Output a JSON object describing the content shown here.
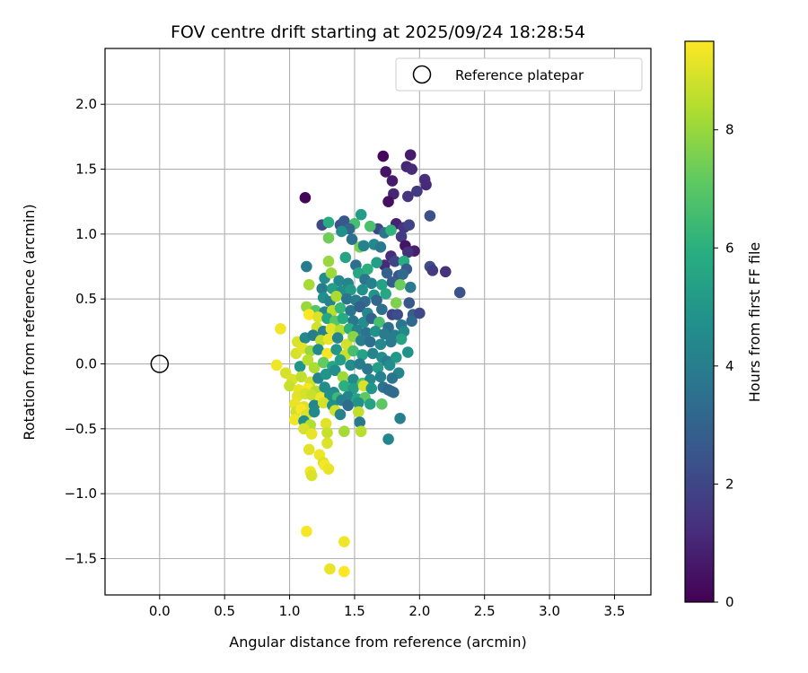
{
  "chart_data": {
    "type": "scatter",
    "title": "FOV centre drift starting at 2025/09/24 18:28:54",
    "xlabel": "Angular distance from reference (arcmin)",
    "ylabel": "Rotation from reference (arcmin)",
    "xlim": [
      -0.42,
      3.78
    ],
    "ylim": [
      -1.78,
      2.43
    ],
    "xticks": [
      0.0,
      0.5,
      1.0,
      1.5,
      2.0,
      2.5,
      3.0,
      3.5
    ],
    "xtick_labels": [
      "0.0",
      "0.5",
      "1.0",
      "1.5",
      "2.0",
      "2.5",
      "3.0",
      "3.5"
    ],
    "yticks": [
      -1.5,
      -1.0,
      -0.5,
      0.0,
      0.5,
      1.0,
      1.5,
      2.0
    ],
    "ytick_labels": [
      "−1.5",
      "−1.0",
      "−0.5",
      "0.0",
      "0.5",
      "1.0",
      "1.5",
      "2.0"
    ],
    "grid": true,
    "legend": {
      "position": "top-right",
      "label": "Reference platepar"
    },
    "reference_point": {
      "x": 0.0,
      "y": 0.0
    },
    "colorbar": {
      "label": "Hours from first FF file",
      "colormap": "viridis",
      "range": [
        0,
        9.5
      ],
      "ticks": [
        0,
        2,
        4,
        6,
        8
      ],
      "tick_labels": [
        "0",
        "2",
        "4",
        "6",
        "8"
      ]
    },
    "points": [
      {
        "x": 1.12,
        "y": 1.28,
        "h": 0.1
      },
      {
        "x": 1.72,
        "y": 1.6,
        "h": 0.2
      },
      {
        "x": 1.93,
        "y": 1.61,
        "h": 0.7
      },
      {
        "x": 1.9,
        "y": 1.52,
        "h": 1.0
      },
      {
        "x": 1.94,
        "y": 1.5,
        "h": 1.1
      },
      {
        "x": 1.74,
        "y": 1.48,
        "h": 0.5
      },
      {
        "x": 2.04,
        "y": 1.42,
        "h": 1.3
      },
      {
        "x": 1.79,
        "y": 1.41,
        "h": 0.7
      },
      {
        "x": 2.05,
        "y": 1.38,
        "h": 1.1
      },
      {
        "x": 1.98,
        "y": 1.33,
        "h": 1.6
      },
      {
        "x": 1.8,
        "y": 1.31,
        "h": 1.0
      },
      {
        "x": 1.91,
        "y": 1.29,
        "h": 1.4
      },
      {
        "x": 1.76,
        "y": 1.25,
        "h": 0.4
      },
      {
        "x": 2.08,
        "y": 1.14,
        "h": 2.3
      },
      {
        "x": 1.25,
        "y": 1.07,
        "h": 2.1
      },
      {
        "x": 1.39,
        "y": 1.07,
        "h": 2.3
      },
      {
        "x": 1.42,
        "y": 1.1,
        "h": 2.6
      },
      {
        "x": 1.82,
        "y": 1.08,
        "h": 0.9
      },
      {
        "x": 1.88,
        "y": 1.05,
        "h": 1.5
      },
      {
        "x": 1.92,
        "y": 1.07,
        "h": 1.9
      },
      {
        "x": 1.68,
        "y": 1.04,
        "h": 2.0
      },
      {
        "x": 1.62,
        "y": 1.06,
        "h": 6.7
      },
      {
        "x": 1.55,
        "y": 1.15,
        "h": 5.2
      },
      {
        "x": 1.5,
        "y": 1.08,
        "h": 6.6
      },
      {
        "x": 1.3,
        "y": 1.09,
        "h": 5.8
      },
      {
        "x": 1.46,
        "y": 1.04,
        "h": 3.1
      },
      {
        "x": 1.73,
        "y": 1.01,
        "h": 3.6
      },
      {
        "x": 1.78,
        "y": 1.03,
        "h": 6.1
      },
      {
        "x": 1.86,
        "y": 0.98,
        "h": 1.6
      },
      {
        "x": 1.89,
        "y": 0.91,
        "h": 0.5
      },
      {
        "x": 1.96,
        "y": 0.87,
        "h": 0.8
      },
      {
        "x": 1.91,
        "y": 0.86,
        "h": 1.3
      },
      {
        "x": 1.54,
        "y": 0.9,
        "h": 7.5
      },
      {
        "x": 1.57,
        "y": 0.91,
        "h": 4.2
      },
      {
        "x": 1.65,
        "y": 0.92,
        "h": 4.5
      },
      {
        "x": 1.7,
        "y": 0.9,
        "h": 3.8
      },
      {
        "x": 1.3,
        "y": 0.97,
        "h": 7.4
      },
      {
        "x": 1.4,
        "y": 1.02,
        "h": 4.7
      },
      {
        "x": 1.48,
        "y": 0.96,
        "h": 3.5
      },
      {
        "x": 1.78,
        "y": 0.83,
        "h": 1.2
      },
      {
        "x": 1.81,
        "y": 0.79,
        "h": 2.0
      },
      {
        "x": 1.73,
        "y": 0.76,
        "h": 1.1
      },
      {
        "x": 1.88,
        "y": 0.79,
        "h": 5.9
      },
      {
        "x": 1.9,
        "y": 0.73,
        "h": 2.7
      },
      {
        "x": 2.08,
        "y": 0.75,
        "h": 2.2
      },
      {
        "x": 2.1,
        "y": 0.72,
        "h": 1.6
      },
      {
        "x": 2.2,
        "y": 0.71,
        "h": 1.3
      },
      {
        "x": 2.31,
        "y": 0.55,
        "h": 2.4
      },
      {
        "x": 1.13,
        "y": 0.75,
        "h": 4.0
      },
      {
        "x": 1.3,
        "y": 0.79,
        "h": 8.0
      },
      {
        "x": 1.43,
        "y": 0.82,
        "h": 5.5
      },
      {
        "x": 1.51,
        "y": 0.76,
        "h": 3.4
      },
      {
        "x": 1.6,
        "y": 0.73,
        "h": 6.0
      },
      {
        "x": 1.67,
        "y": 0.78,
        "h": 5.3
      },
      {
        "x": 1.75,
        "y": 0.7,
        "h": 3.0
      },
      {
        "x": 1.84,
        "y": 0.68,
        "h": 2.5
      },
      {
        "x": 1.87,
        "y": 0.69,
        "h": 3.2
      },
      {
        "x": 1.93,
        "y": 0.59,
        "h": 3.9
      },
      {
        "x": 1.27,
        "y": 0.66,
        "h": 4.6
      },
      {
        "x": 1.32,
        "y": 0.7,
        "h": 8.1
      },
      {
        "x": 1.38,
        "y": 0.64,
        "h": 4.4
      },
      {
        "x": 1.45,
        "y": 0.62,
        "h": 4.3
      },
      {
        "x": 1.53,
        "y": 0.7,
        "h": 5.6
      },
      {
        "x": 1.58,
        "y": 0.65,
        "h": 3.7
      },
      {
        "x": 1.63,
        "y": 0.62,
        "h": 4.1
      },
      {
        "x": 1.71,
        "y": 0.61,
        "h": 5.4
      },
      {
        "x": 1.79,
        "y": 0.63,
        "h": 2.8
      },
      {
        "x": 1.85,
        "y": 0.61,
        "h": 7.3
      },
      {
        "x": 1.15,
        "y": 0.61,
        "h": 8.2
      },
      {
        "x": 1.25,
        "y": 0.58,
        "h": 4.0
      },
      {
        "x": 1.33,
        "y": 0.58,
        "h": 5.3
      },
      {
        "x": 1.4,
        "y": 0.56,
        "h": 4.6
      },
      {
        "x": 1.47,
        "y": 0.57,
        "h": 5.1
      },
      {
        "x": 1.56,
        "y": 0.57,
        "h": 4.8
      },
      {
        "x": 1.65,
        "y": 0.53,
        "h": 4.9
      },
      {
        "x": 1.74,
        "y": 0.54,
        "h": 5.6
      },
      {
        "x": 1.26,
        "y": 0.51,
        "h": 4.7
      },
      {
        "x": 1.31,
        "y": 0.48,
        "h": 4.2
      },
      {
        "x": 1.36,
        "y": 0.52,
        "h": 8.3
      },
      {
        "x": 1.44,
        "y": 0.5,
        "h": 3.6
      },
      {
        "x": 1.51,
        "y": 0.49,
        "h": 4.0
      },
      {
        "x": 1.58,
        "y": 0.48,
        "h": 3.3
      },
      {
        "x": 1.67,
        "y": 0.49,
        "h": 3.1
      },
      {
        "x": 1.82,
        "y": 0.47,
        "h": 7.6
      },
      {
        "x": 1.92,
        "y": 0.47,
        "h": 2.6
      },
      {
        "x": 1.13,
        "y": 0.44,
        "h": 8.0
      },
      {
        "x": 1.2,
        "y": 0.41,
        "h": 6.9
      },
      {
        "x": 1.27,
        "y": 0.4,
        "h": 4.3
      },
      {
        "x": 1.33,
        "y": 0.41,
        "h": 8.5
      },
      {
        "x": 1.39,
        "y": 0.43,
        "h": 6.3
      },
      {
        "x": 1.47,
        "y": 0.41,
        "h": 3.7
      },
      {
        "x": 1.54,
        "y": 0.44,
        "h": 2.9
      },
      {
        "x": 1.6,
        "y": 0.39,
        "h": 4.4
      },
      {
        "x": 1.71,
        "y": 0.42,
        "h": 3.5
      },
      {
        "x": 1.79,
        "y": 0.38,
        "h": 1.9
      },
      {
        "x": 1.83,
        "y": 0.38,
        "h": 2.2
      },
      {
        "x": 1.95,
        "y": 0.38,
        "h": 2.8
      },
      {
        "x": 2.0,
        "y": 0.39,
        "h": 2.1
      },
      {
        "x": 1.94,
        "y": 0.33,
        "h": 3.2
      },
      {
        "x": 1.15,
        "y": 0.38,
        "h": 9.5
      },
      {
        "x": 1.22,
        "y": 0.36,
        "h": 9.0
      },
      {
        "x": 1.29,
        "y": 0.35,
        "h": 5.6
      },
      {
        "x": 1.35,
        "y": 0.33,
        "h": 7.0
      },
      {
        "x": 1.41,
        "y": 0.35,
        "h": 5.8
      },
      {
        "x": 1.49,
        "y": 0.33,
        "h": 3.8
      },
      {
        "x": 1.57,
        "y": 0.32,
        "h": 4.6
      },
      {
        "x": 1.63,
        "y": 0.35,
        "h": 3.0
      },
      {
        "x": 1.69,
        "y": 0.32,
        "h": 6.6
      },
      {
        "x": 1.76,
        "y": 0.28,
        "h": 3.4
      },
      {
        "x": 1.86,
        "y": 0.3,
        "h": 3.7
      },
      {
        "x": 1.88,
        "y": 0.25,
        "h": 4.5
      },
      {
        "x": 0.93,
        "y": 0.27,
        "h": 9.3
      },
      {
        "x": 1.21,
        "y": 0.28,
        "h": 8.8
      },
      {
        "x": 1.26,
        "y": 0.25,
        "h": 4.1
      },
      {
        "x": 1.32,
        "y": 0.27,
        "h": 9.1
      },
      {
        "x": 1.39,
        "y": 0.26,
        "h": 8.4
      },
      {
        "x": 1.46,
        "y": 0.27,
        "h": 6.0
      },
      {
        "x": 1.52,
        "y": 0.26,
        "h": 4.2
      },
      {
        "x": 1.59,
        "y": 0.24,
        "h": 3.6
      },
      {
        "x": 1.66,
        "y": 0.25,
        "h": 4.8
      },
      {
        "x": 1.73,
        "y": 0.23,
        "h": 3.9
      },
      {
        "x": 1.81,
        "y": 0.22,
        "h": 4.0
      },
      {
        "x": 1.86,
        "y": 0.19,
        "h": 5.5
      },
      {
        "x": 1.06,
        "y": 0.17,
        "h": 9.0
      },
      {
        "x": 1.12,
        "y": 0.2,
        "h": 4.4
      },
      {
        "x": 1.18,
        "y": 0.22,
        "h": 4.0
      },
      {
        "x": 1.24,
        "y": 0.18,
        "h": 8.6
      },
      {
        "x": 1.3,
        "y": 0.19,
        "h": 9.2
      },
      {
        "x": 1.37,
        "y": 0.2,
        "h": 4.3
      },
      {
        "x": 1.44,
        "y": 0.15,
        "h": 8.9
      },
      {
        "x": 1.49,
        "y": 0.21,
        "h": 7.8
      },
      {
        "x": 1.55,
        "y": 0.18,
        "h": 4.0
      },
      {
        "x": 1.62,
        "y": 0.17,
        "h": 3.4
      },
      {
        "x": 1.7,
        "y": 0.15,
        "h": 4.4
      },
      {
        "x": 1.78,
        "y": 0.17,
        "h": 3.9
      },
      {
        "x": 1.91,
        "y": 0.09,
        "h": 4.8
      },
      {
        "x": 1.05,
        "y": 0.08,
        "h": 8.9
      },
      {
        "x": 1.1,
        "y": 0.12,
        "h": 9.1
      },
      {
        "x": 1.16,
        "y": 0.1,
        "h": 8.0
      },
      {
        "x": 1.22,
        "y": 0.11,
        "h": 4.5
      },
      {
        "x": 1.29,
        "y": 0.08,
        "h": 9.4
      },
      {
        "x": 1.36,
        "y": 0.11,
        "h": 5.0
      },
      {
        "x": 1.43,
        "y": 0.07,
        "h": 8.7
      },
      {
        "x": 1.49,
        "y": 0.1,
        "h": 6.6
      },
      {
        "x": 1.56,
        "y": 0.07,
        "h": 5.5
      },
      {
        "x": 1.64,
        "y": 0.08,
        "h": 4.2
      },
      {
        "x": 1.71,
        "y": 0.05,
        "h": 4.6
      },
      {
        "x": 1.75,
        "y": 0.02,
        "h": 3.9
      },
      {
        "x": 1.82,
        "y": 0.05,
        "h": 5.1
      },
      {
        "x": 0.9,
        "y": -0.01,
        "h": 9.3
      },
      {
        "x": 0.97,
        "y": -0.07,
        "h": 8.9
      },
      {
        "x": 1.08,
        "y": -0.02,
        "h": 4.9
      },
      {
        "x": 1.14,
        "y": 0.03,
        "h": 8.5
      },
      {
        "x": 1.19,
        "y": -0.03,
        "h": 8.3
      },
      {
        "x": 1.26,
        "y": 0.01,
        "h": 7.2
      },
      {
        "x": 1.33,
        "y": -0.02,
        "h": 5.6
      },
      {
        "x": 1.39,
        "y": 0.03,
        "h": 5.3
      },
      {
        "x": 1.47,
        "y": -0.01,
        "h": 4.6
      },
      {
        "x": 1.54,
        "y": 0.0,
        "h": 4.0
      },
      {
        "x": 1.6,
        "y": -0.04,
        "h": 3.8
      },
      {
        "x": 1.68,
        "y": -0.03,
        "h": 5.3
      },
      {
        "x": 1.77,
        "y": -0.01,
        "h": 4.6
      },
      {
        "x": 1.84,
        "y": -0.07,
        "h": 4.3
      },
      {
        "x": 1.02,
        "y": -0.12,
        "h": 9.0
      },
      {
        "x": 1.09,
        "y": -0.1,
        "h": 8.6
      },
      {
        "x": 1.16,
        "y": -0.14,
        "h": 8.8
      },
      {
        "x": 1.22,
        "y": -0.11,
        "h": 4.2
      },
      {
        "x": 1.28,
        "y": -0.08,
        "h": 4.9
      },
      {
        "x": 1.35,
        "y": -0.05,
        "h": 4.6
      },
      {
        "x": 1.41,
        "y": -0.1,
        "h": 8.1
      },
      {
        "x": 1.49,
        "y": -0.12,
        "h": 4.5
      },
      {
        "x": 1.56,
        "y": -0.15,
        "h": 6.8
      },
      {
        "x": 1.62,
        "y": -0.12,
        "h": 4.4
      },
      {
        "x": 1.7,
        "y": -0.1,
        "h": 4.1
      },
      {
        "x": 1.79,
        "y": -0.11,
        "h": 3.7
      },
      {
        "x": 1.0,
        "y": -0.17,
        "h": 8.7
      },
      {
        "x": 1.07,
        "y": -0.2,
        "h": 9.2
      },
      {
        "x": 1.14,
        "y": -0.19,
        "h": 9.4
      },
      {
        "x": 1.2,
        "y": -0.21,
        "h": 8.4
      },
      {
        "x": 1.27,
        "y": -0.18,
        "h": 4.6
      },
      {
        "x": 1.34,
        "y": -0.22,
        "h": 4.4
      },
      {
        "x": 1.42,
        "y": -0.17,
        "h": 6.0
      },
      {
        "x": 1.49,
        "y": -0.19,
        "h": 5.3
      },
      {
        "x": 1.57,
        "y": -0.17,
        "h": 9.0
      },
      {
        "x": 1.63,
        "y": -0.19,
        "h": 4.9
      },
      {
        "x": 1.72,
        "y": -0.18,
        "h": 3.6
      },
      {
        "x": 1.76,
        "y": -0.2,
        "h": 3.2
      },
      {
        "x": 1.78,
        "y": -0.21,
        "h": 3.4
      },
      {
        "x": 1.8,
        "y": -0.22,
        "h": 3.3
      },
      {
        "x": 1.06,
        "y": -0.25,
        "h": 9.1
      },
      {
        "x": 1.12,
        "y": -0.23,
        "h": 8.9
      },
      {
        "x": 1.17,
        "y": -0.24,
        "h": 8.7
      },
      {
        "x": 1.24,
        "y": -0.26,
        "h": 9.3
      },
      {
        "x": 1.31,
        "y": -0.24,
        "h": 4.7
      },
      {
        "x": 1.37,
        "y": -0.26,
        "h": 6.4
      },
      {
        "x": 1.45,
        "y": -0.25,
        "h": 4.3
      },
      {
        "x": 1.52,
        "y": -0.27,
        "h": 5.5
      },
      {
        "x": 1.58,
        "y": -0.26,
        "h": 7.1
      },
      {
        "x": 1.04,
        "y": -0.31,
        "h": 9.2
      },
      {
        "x": 1.11,
        "y": -0.33,
        "h": 9.0
      },
      {
        "x": 1.19,
        "y": -0.32,
        "h": 4.3
      },
      {
        "x": 1.26,
        "y": -0.3,
        "h": 8.9
      },
      {
        "x": 1.33,
        "y": -0.32,
        "h": 4.8
      },
      {
        "x": 1.4,
        "y": -0.28,
        "h": 4.1
      },
      {
        "x": 1.45,
        "y": -0.32,
        "h": 3.3
      },
      {
        "x": 1.53,
        "y": -0.3,
        "h": 4.8
      },
      {
        "x": 1.62,
        "y": -0.31,
        "h": 5.4
      },
      {
        "x": 1.71,
        "y": -0.31,
        "h": 7.1
      },
      {
        "x": 1.05,
        "y": -0.37,
        "h": 8.8
      },
      {
        "x": 1.09,
        "y": -0.35,
        "h": 9.4
      },
      {
        "x": 1.13,
        "y": -0.39,
        "h": 9.0
      },
      {
        "x": 1.19,
        "y": -0.37,
        "h": 4.5
      },
      {
        "x": 1.35,
        "y": -0.36,
        "h": 8.8
      },
      {
        "x": 1.39,
        "y": -0.39,
        "h": 4.2
      },
      {
        "x": 1.53,
        "y": -0.37,
        "h": 8.6
      },
      {
        "x": 1.04,
        "y": -0.43,
        "h": 9.3
      },
      {
        "x": 1.11,
        "y": -0.44,
        "h": 4.7
      },
      {
        "x": 1.16,
        "y": -0.47,
        "h": 8.4
      },
      {
        "x": 1.28,
        "y": -0.46,
        "h": 9.1
      },
      {
        "x": 1.54,
        "y": -0.45,
        "h": 3.8
      },
      {
        "x": 1.11,
        "y": -0.5,
        "h": 8.9
      },
      {
        "x": 1.17,
        "y": -0.54,
        "h": 9.2
      },
      {
        "x": 1.29,
        "y": -0.53,
        "h": 8.7
      },
      {
        "x": 1.42,
        "y": -0.52,
        "h": 8.2
      },
      {
        "x": 1.55,
        "y": -0.52,
        "h": 8.5
      },
      {
        "x": 1.85,
        "y": -0.42,
        "h": 4.1
      },
      {
        "x": 1.76,
        "y": -0.58,
        "h": 4.3
      },
      {
        "x": 1.15,
        "y": -0.66,
        "h": 9.1
      },
      {
        "x": 1.23,
        "y": -0.7,
        "h": 9.3
      },
      {
        "x": 1.29,
        "y": -0.61,
        "h": 9.0
      },
      {
        "x": 1.26,
        "y": -0.76,
        "h": 9.0
      },
      {
        "x": 1.27,
        "y": -0.78,
        "h": 9.4
      },
      {
        "x": 1.3,
        "y": -0.81,
        "h": 9.2
      },
      {
        "x": 1.16,
        "y": -0.83,
        "h": 9.3
      },
      {
        "x": 1.17,
        "y": -0.86,
        "h": 9.0
      },
      {
        "x": 1.13,
        "y": -1.29,
        "h": 9.4
      },
      {
        "x": 1.42,
        "y": -1.37,
        "h": 9.3
      },
      {
        "x": 1.31,
        "y": -1.58,
        "h": 9.2
      },
      {
        "x": 1.42,
        "y": -1.6,
        "h": 9.5
      }
    ]
  }
}
